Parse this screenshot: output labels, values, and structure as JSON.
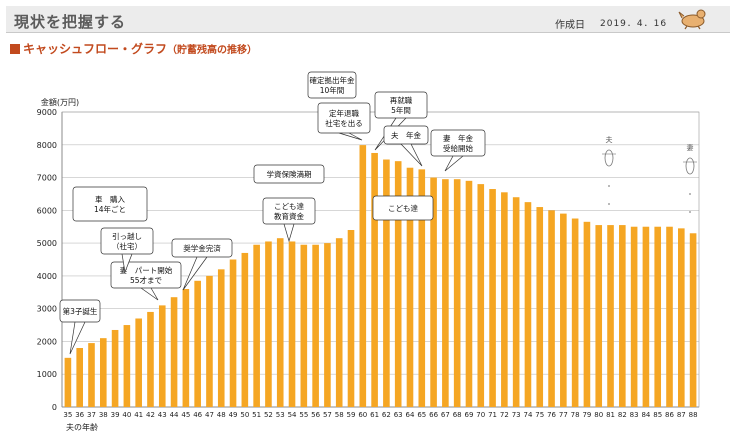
{
  "header": {
    "title": "現状を把握する",
    "created_label": "作成日",
    "created_date": "2019．4．16"
  },
  "section": {
    "title": "キャッシュフロー・グラフ",
    "subtitle": "（貯蓄残高の推移）"
  },
  "colors": {
    "bar": "#f5a623",
    "accent": "#c24a1e",
    "grid": "#bfbfbf"
  },
  "chart_data": {
    "type": "bar",
    "title": "キャッシュフロー・グラフ（貯蓄残高の推移）",
    "ylabel": "金額(万円)",
    "xlabel": "夫の年齢",
    "ylim": [
      0,
      9000
    ],
    "yticks": [
      0,
      1000,
      2000,
      3000,
      4000,
      5000,
      6000,
      7000,
      8000,
      9000
    ],
    "categories": [
      "35",
      "36",
      "37",
      "38",
      "39",
      "40",
      "41",
      "42",
      "43",
      "44",
      "45",
      "46",
      "47",
      "48",
      "49",
      "50",
      "51",
      "52",
      "53",
      "54",
      "55",
      "56",
      "57",
      "58",
      "59",
      "60",
      "61",
      "62",
      "63",
      "64",
      "65",
      "66",
      "67",
      "68",
      "69",
      "70",
      "71",
      "72",
      "73",
      "74",
      "75",
      "76",
      "77",
      "78",
      "79",
      "80",
      "81",
      "82",
      "83",
      "84",
      "85",
      "86",
      "87",
      "88"
    ],
    "series": [
      {
        "name": "貯蓄残高",
        "values": [
          1500,
          1800,
          1950,
          2100,
          2350,
          2500,
          2700,
          2900,
          3100,
          3350,
          3600,
          3850,
          4000,
          4200,
          4500,
          4700,
          4950,
          5050,
          5150,
          5050,
          4950,
          4950,
          5000,
          5150,
          5400,
          7990,
          7750,
          7550,
          7500,
          7300,
          7250,
          7000,
          6950,
          6950,
          6900,
          6800,
          6650,
          6550,
          6400,
          6250,
          6100,
          6000,
          5900,
          5750,
          5650,
          5550,
          5550,
          5550,
          5500,
          5500,
          5500,
          5500,
          5450,
          5300
        ]
      }
    ],
    "annotations": [
      {
        "lines": [
          "第3子誕生"
        ],
        "target": "35"
      },
      {
        "lines": [
          "妻　パート開始",
          "55才まで"
        ],
        "target": "43"
      },
      {
        "lines": [
          "引っ越し",
          "（社宅）"
        ],
        "target": "44"
      },
      {
        "lines": [
          "奨学金完済"
        ],
        "target": "45"
      },
      {
        "lines": [
          "車　購入",
          "14年ごと"
        ],
        "target": "39"
      },
      {
        "lines": [
          "学資保険満期"
        ],
        "target": "53"
      },
      {
        "lines": [
          "こども達",
          "教育資金"
        ],
        "target": "54"
      },
      {
        "lines": [
          "確定拠出年金",
          "10年間"
        ],
        "target": "60"
      },
      {
        "lines": [
          "定年退職",
          "社宅を出る"
        ],
        "target": "60"
      },
      {
        "lines": [
          "再就職",
          "5年間"
        ],
        "target": "61"
      },
      {
        "lines": [
          "夫　年金"
        ],
        "target": "65"
      },
      {
        "lines": [
          "妻　年金",
          "受給開始"
        ],
        "target": "67"
      },
      {
        "lines": [
          "こども達"
        ],
        "target": "65"
      }
    ],
    "legend": [
      {
        "label": "夫"
      },
      {
        "label": "妻"
      }
    ]
  }
}
